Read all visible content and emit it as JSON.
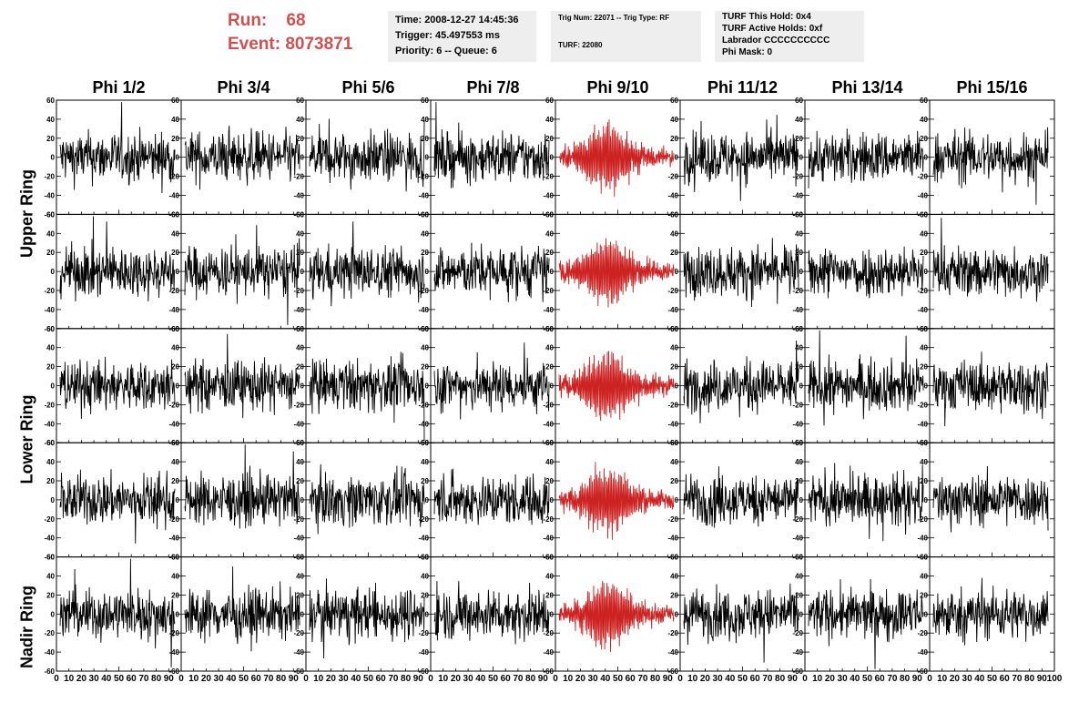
{
  "header": {
    "run_label": "Run:",
    "run_value": "68",
    "event_label": "Event:",
    "event_value": "8073871"
  },
  "info_panels": [
    {
      "lines": [
        "Time: 2008-12-27 14:45:36",
        "Trigger: 45.497553 ms",
        "Priority: 6 -- Queue: 6"
      ]
    },
    {
      "lines": [
        "Trig Num: 22071 -- Trig Type: RF",
        "",
        "TURF: 22080"
      ]
    },
    {
      "lines": [
        "TURF This Hold: 0x4",
        "TURF Active Holds: 0xf",
        "Labrador CCCCCCCCCC",
        "Phi Mask: 0"
      ]
    }
  ],
  "columns": [
    "Phi 1/2",
    "Phi 3/4",
    "Phi 5/6",
    "Phi 7/8",
    "Phi 9/10",
    "Phi 11/12",
    "Phi 13/14",
    "Phi 15/16"
  ],
  "ring_labels": [
    "Upper Ring",
    "Lower Ring",
    "Nadir Ring"
  ],
  "colors": {
    "normal_trace": "#000000",
    "triggered_trace": "#cc2222"
  },
  "chart_data": {
    "type": "line",
    "layout": "grid 5 rows x 8 columns of waveform panels",
    "rows": 5,
    "cols": 8,
    "ylim": [
      -60,
      60
    ],
    "xlim": [
      0,
      100
    ],
    "y_ticks": [
      60,
      40,
      20,
      0,
      -20,
      -40,
      -60
    ],
    "x_tick_labels_bottom": [
      "0",
      "10",
      "20",
      "30",
      "40",
      "50",
      "60",
      "70",
      "80",
      "90",
      "100"
    ],
    "highlighted_column": 4,
    "highlighted_color": "#cc2222",
    "default_color": "#000000",
    "waveforms": "noise-like sampled traces, approx. 260 samples each; column Phi 9/10 shows an impulse-like wave packet centred near x≈40-50 with amplitude up to ~40"
  }
}
